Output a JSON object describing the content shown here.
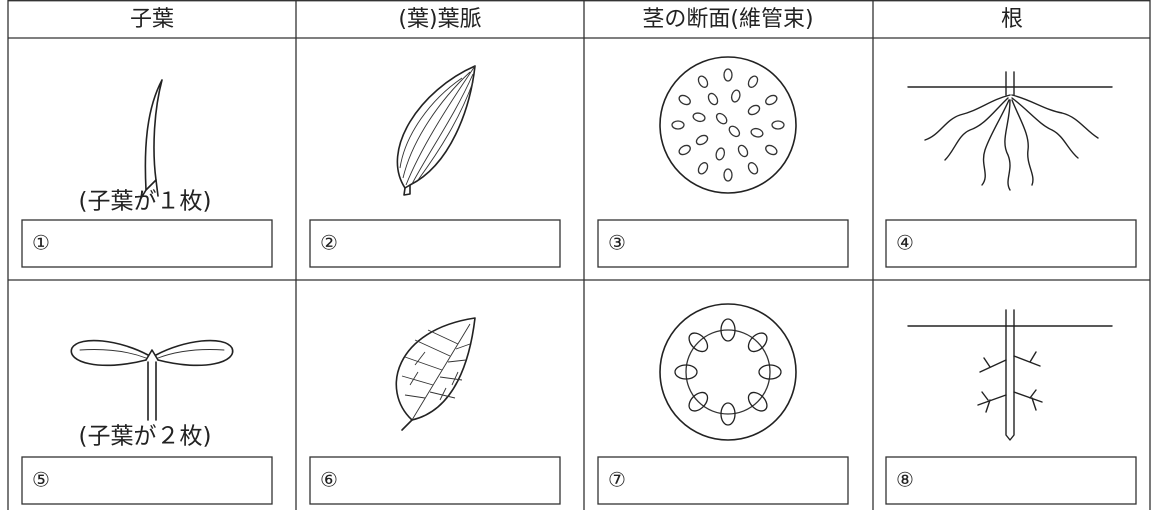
{
  "table": {
    "headers": [
      "子葉",
      "(葉)葉脈",
      "茎の断面(維管束)",
      "根"
    ],
    "rows": [
      {
        "caption": "(子葉が１枚)",
        "cells": [
          "①",
          "②",
          "③",
          "④"
        ]
      },
      {
        "caption": "(子葉が２枚)",
        "cells": [
          "⑤",
          "⑥",
          "⑦",
          "⑧"
        ]
      }
    ]
  }
}
